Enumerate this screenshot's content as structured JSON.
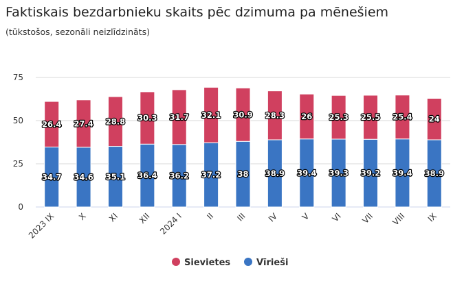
{
  "chart_data": {
    "type": "bar",
    "stacked": true,
    "title": "Faktiskais bezdarbnieku skaits pēc dzimuma pa mēnešiem",
    "subtitle": "(tūkstošos, sezonāli neizlīdzināts)",
    "categories": [
      "2023 IX",
      "X",
      "XI",
      "XII",
      "2024 I",
      "II",
      "III",
      "IV",
      "V",
      "VI",
      "VII",
      "VIII",
      "IX"
    ],
    "series": [
      {
        "name": "Vīrieši",
        "color": "#3a75c3",
        "values": [
          34.7,
          34.6,
          35.1,
          36.4,
          36.2,
          37.2,
          38,
          38.9,
          39.4,
          39.3,
          39.2,
          39.4,
          38.9
        ]
      },
      {
        "name": "Sievietes",
        "color": "#d0405f",
        "values": [
          26.4,
          27.4,
          28.8,
          30.3,
          31.7,
          32.1,
          30.9,
          28.3,
          26,
          25.3,
          25.5,
          25.4,
          24
        ]
      }
    ],
    "ylim": [
      0,
      75
    ],
    "yticks": [
      0,
      25,
      50,
      75
    ],
    "grid": true,
    "legend_position": "bottom",
    "legend_order": [
      "Sievietes",
      "Vīrieši"
    ]
  }
}
